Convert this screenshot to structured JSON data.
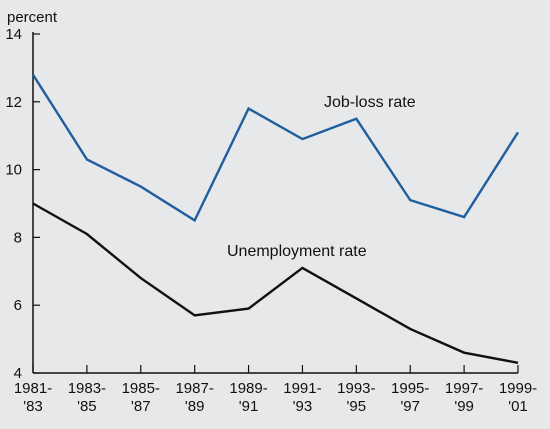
{
  "chart_data": {
    "type": "line",
    "ylabel": "percent",
    "ylim": [
      4,
      14
    ],
    "yticks": [
      "4",
      "6",
      "8",
      "10",
      "12",
      "14"
    ],
    "categories": [
      [
        "1981-",
        "'83"
      ],
      [
        "1983-",
        "'85"
      ],
      [
        "1985-",
        "'87"
      ],
      [
        "1987-",
        "'89"
      ],
      [
        "1989-",
        "'91"
      ],
      [
        "1991-",
        "'93"
      ],
      [
        "1993-",
        "'95"
      ],
      [
        "1995-",
        "'97"
      ],
      [
        "1997-",
        "'99"
      ],
      [
        "1999-",
        "'01"
      ]
    ],
    "series": [
      {
        "name": "Job-loss rate",
        "color": "#1f5f9e",
        "values": [
          12.8,
          10.3,
          9.5,
          8.5,
          11.8,
          10.9,
          11.5,
          9.1,
          8.6,
          11.1
        ]
      },
      {
        "name": "Unemployment rate",
        "color": "#111111",
        "values": [
          9.0,
          8.1,
          6.8,
          5.7,
          5.9,
          7.1,
          6.2,
          5.3,
          4.6,
          4.3
        ]
      }
    ],
    "grid": false,
    "legend": "inline labels"
  }
}
